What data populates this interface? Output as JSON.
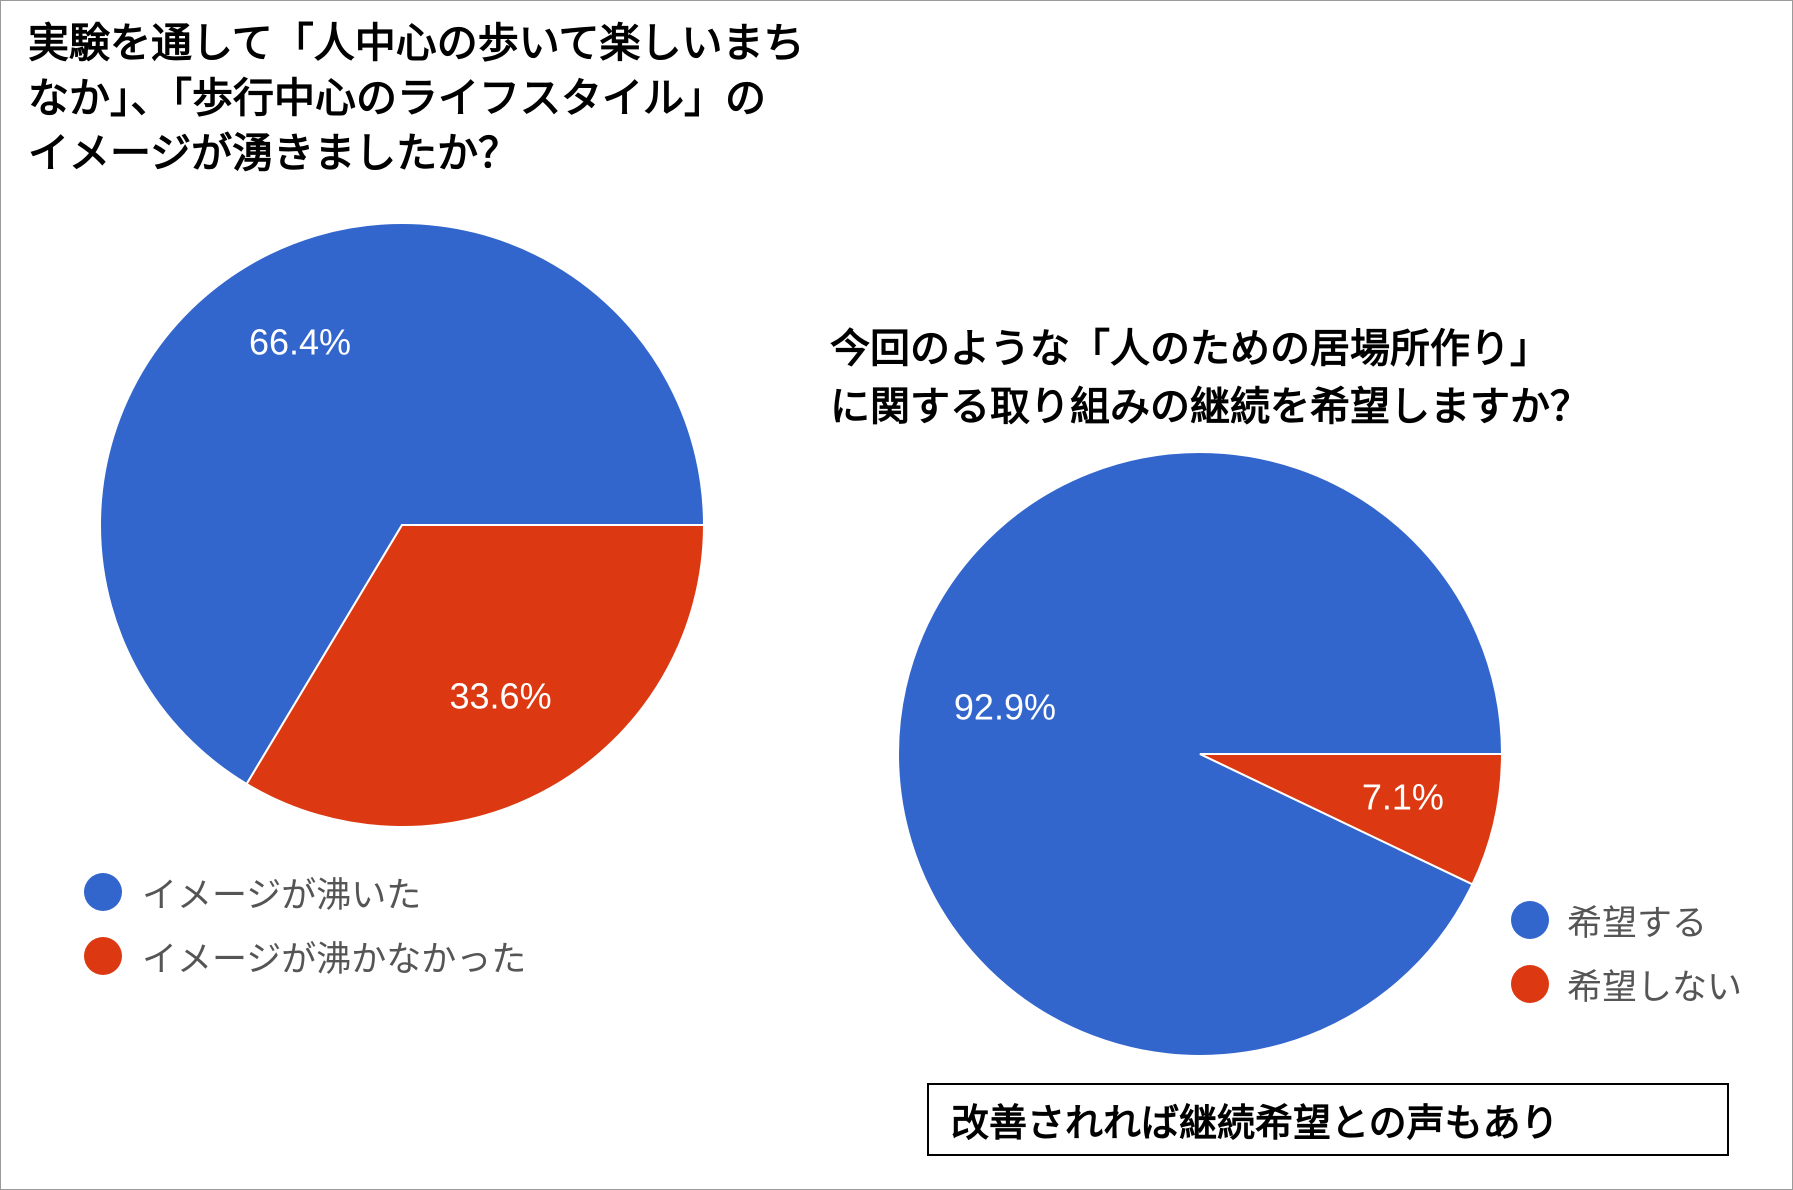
{
  "chart_data": [
    {
      "type": "pie",
      "title": "実験を通して「人中心の歩いて楽しいまちなか」、「歩行中心のライフスタイル」のイメージが湧きましたか？",
      "title_lines": [
        "実験を通して「人中心の歩いて楽しいまち",
        "なか」、「歩行中心のライフスタイル」の",
        "イメージが湧きましたか？"
      ],
      "categories": [
        "イメージが沸いた",
        "イメージが沸かなかった"
      ],
      "values": [
        66.4,
        33.6
      ],
      "labels": [
        "66.4%",
        "33.6%"
      ],
      "colors": [
        "#3366cc",
        "#dc3912"
      ],
      "legend": "bottom-left"
    },
    {
      "type": "pie",
      "title": "今回のような「人のための居場所作り」に関する取り組みの継続を希望しますか？",
      "title_lines": [
        "今回のような「人のための居場所作り」",
        "に関する取り組みの継続を希望しますか？"
      ],
      "categories": [
        "希望する",
        "希望しない"
      ],
      "values": [
        92.9,
        7.1
      ],
      "labels": [
        "92.9%",
        "7.1%"
      ],
      "colors": [
        "#3366cc",
        "#dc3912"
      ],
      "legend": "bottom-right"
    }
  ],
  "note": "改善されれば継続希望との声もあり"
}
